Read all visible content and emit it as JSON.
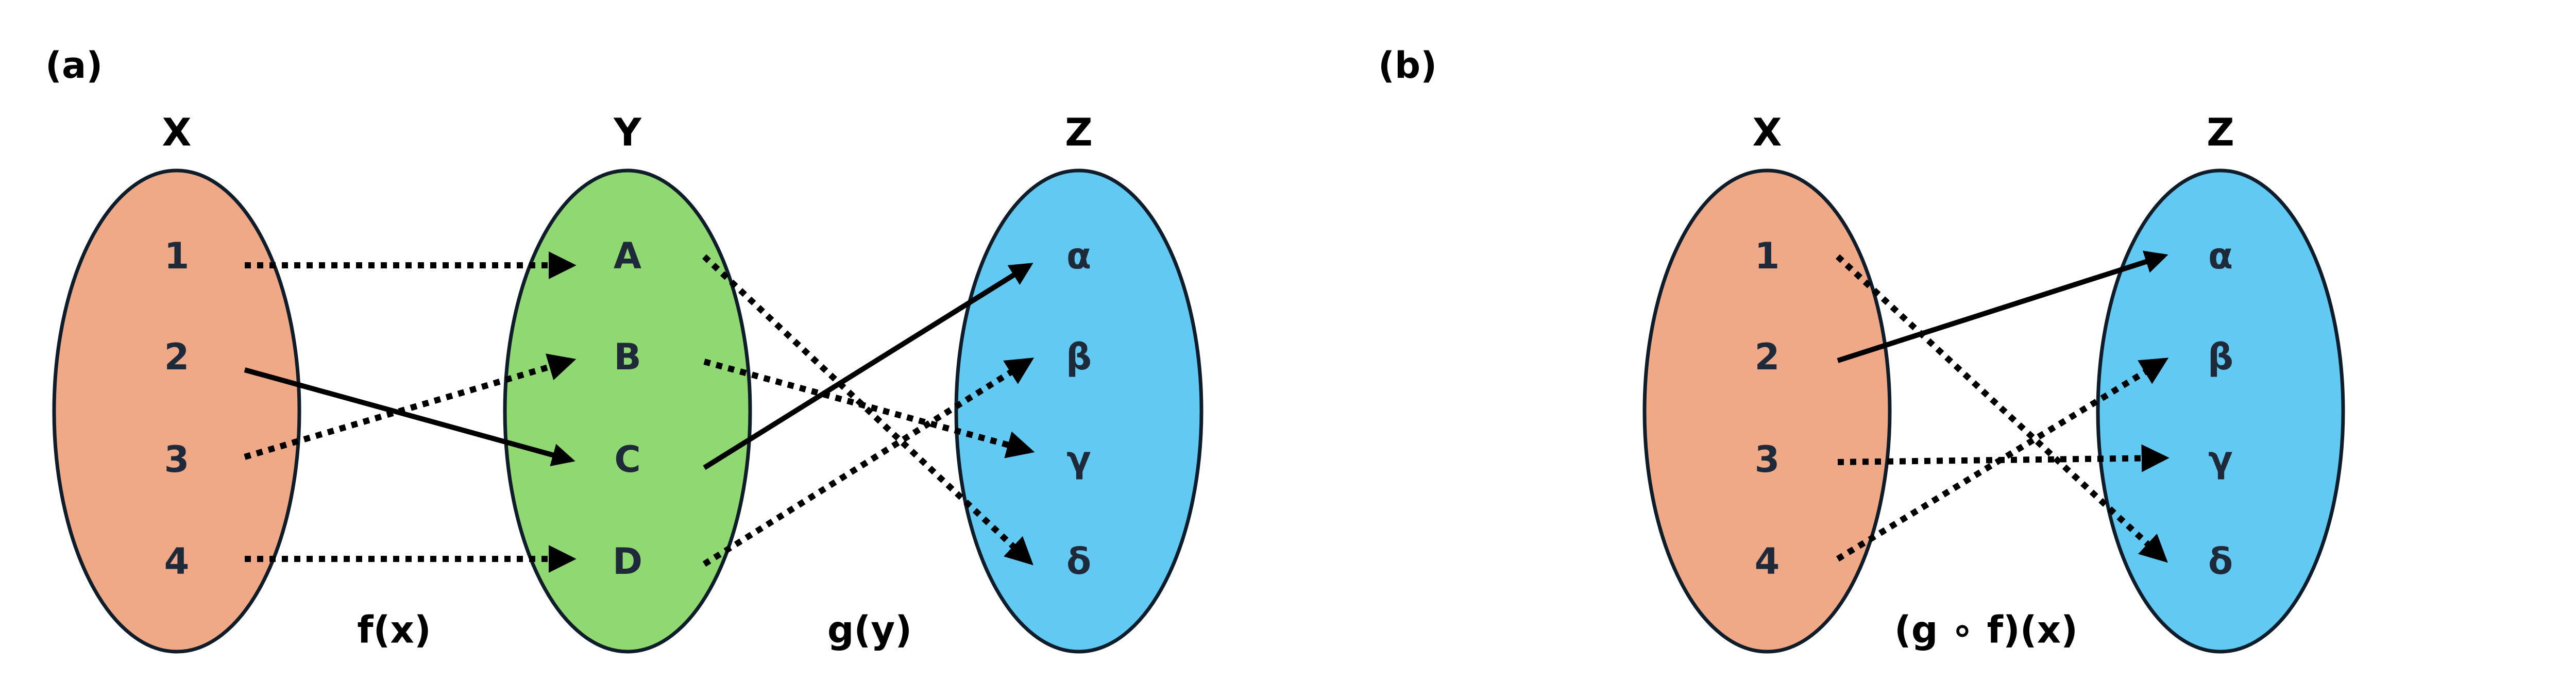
{
  "panels": {
    "a": {
      "label": "(a)",
      "sets": {
        "X": {
          "title": "X",
          "color": "#f0a987",
          "elements": [
            "1",
            "2",
            "3",
            "4"
          ]
        },
        "Y": {
          "title": "Y",
          "color": "#8fd872",
          "elements": [
            "A",
            "B",
            "C",
            "D"
          ]
        },
        "Z": {
          "title": "Z",
          "color": "#62c9f3",
          "elements": [
            "α",
            "β",
            "γ",
            "δ"
          ]
        }
      },
      "function_labels": {
        "f": "f(x)",
        "g": "g(y)"
      },
      "mappings": [
        {
          "set_from": "X",
          "from": "1",
          "set_to": "Y",
          "to": "A",
          "style": "dotted"
        },
        {
          "set_from": "X",
          "from": "2",
          "set_to": "Y",
          "to": "C",
          "style": "solid"
        },
        {
          "set_from": "X",
          "from": "3",
          "set_to": "Y",
          "to": "B",
          "style": "dotted"
        },
        {
          "set_from": "X",
          "from": "4",
          "set_to": "Y",
          "to": "D",
          "style": "dotted"
        },
        {
          "set_from": "Y",
          "from": "A",
          "set_to": "Z",
          "to": "δ",
          "style": "dotted"
        },
        {
          "set_from": "Y",
          "from": "B",
          "set_to": "Z",
          "to": "γ",
          "style": "dotted"
        },
        {
          "set_from": "Y",
          "from": "C",
          "set_to": "Z",
          "to": "α",
          "style": "solid"
        },
        {
          "set_from": "Y",
          "from": "D",
          "set_to": "Z",
          "to": "β",
          "style": "dotted"
        }
      ]
    },
    "b": {
      "label": "(b)",
      "sets": {
        "X": {
          "title": "X",
          "color": "#f0a987",
          "elements": [
            "1",
            "2",
            "3",
            "4"
          ]
        },
        "Z": {
          "title": "Z",
          "color": "#62c9f3",
          "elements": [
            "α",
            "β",
            "γ",
            "δ"
          ]
        }
      },
      "function_labels": {
        "gf": "(g ∘ f)(x)"
      },
      "mappings": [
        {
          "set_from": "X",
          "from": "1",
          "set_to": "Z",
          "to": "δ",
          "style": "dotted"
        },
        {
          "set_from": "X",
          "from": "2",
          "set_to": "Z",
          "to": "α",
          "style": "solid"
        },
        {
          "set_from": "X",
          "from": "3",
          "set_to": "Z",
          "to": "γ",
          "style": "dotted"
        },
        {
          "set_from": "X",
          "from": "4",
          "set_to": "Z",
          "to": "β",
          "style": "dotted"
        }
      ]
    }
  }
}
